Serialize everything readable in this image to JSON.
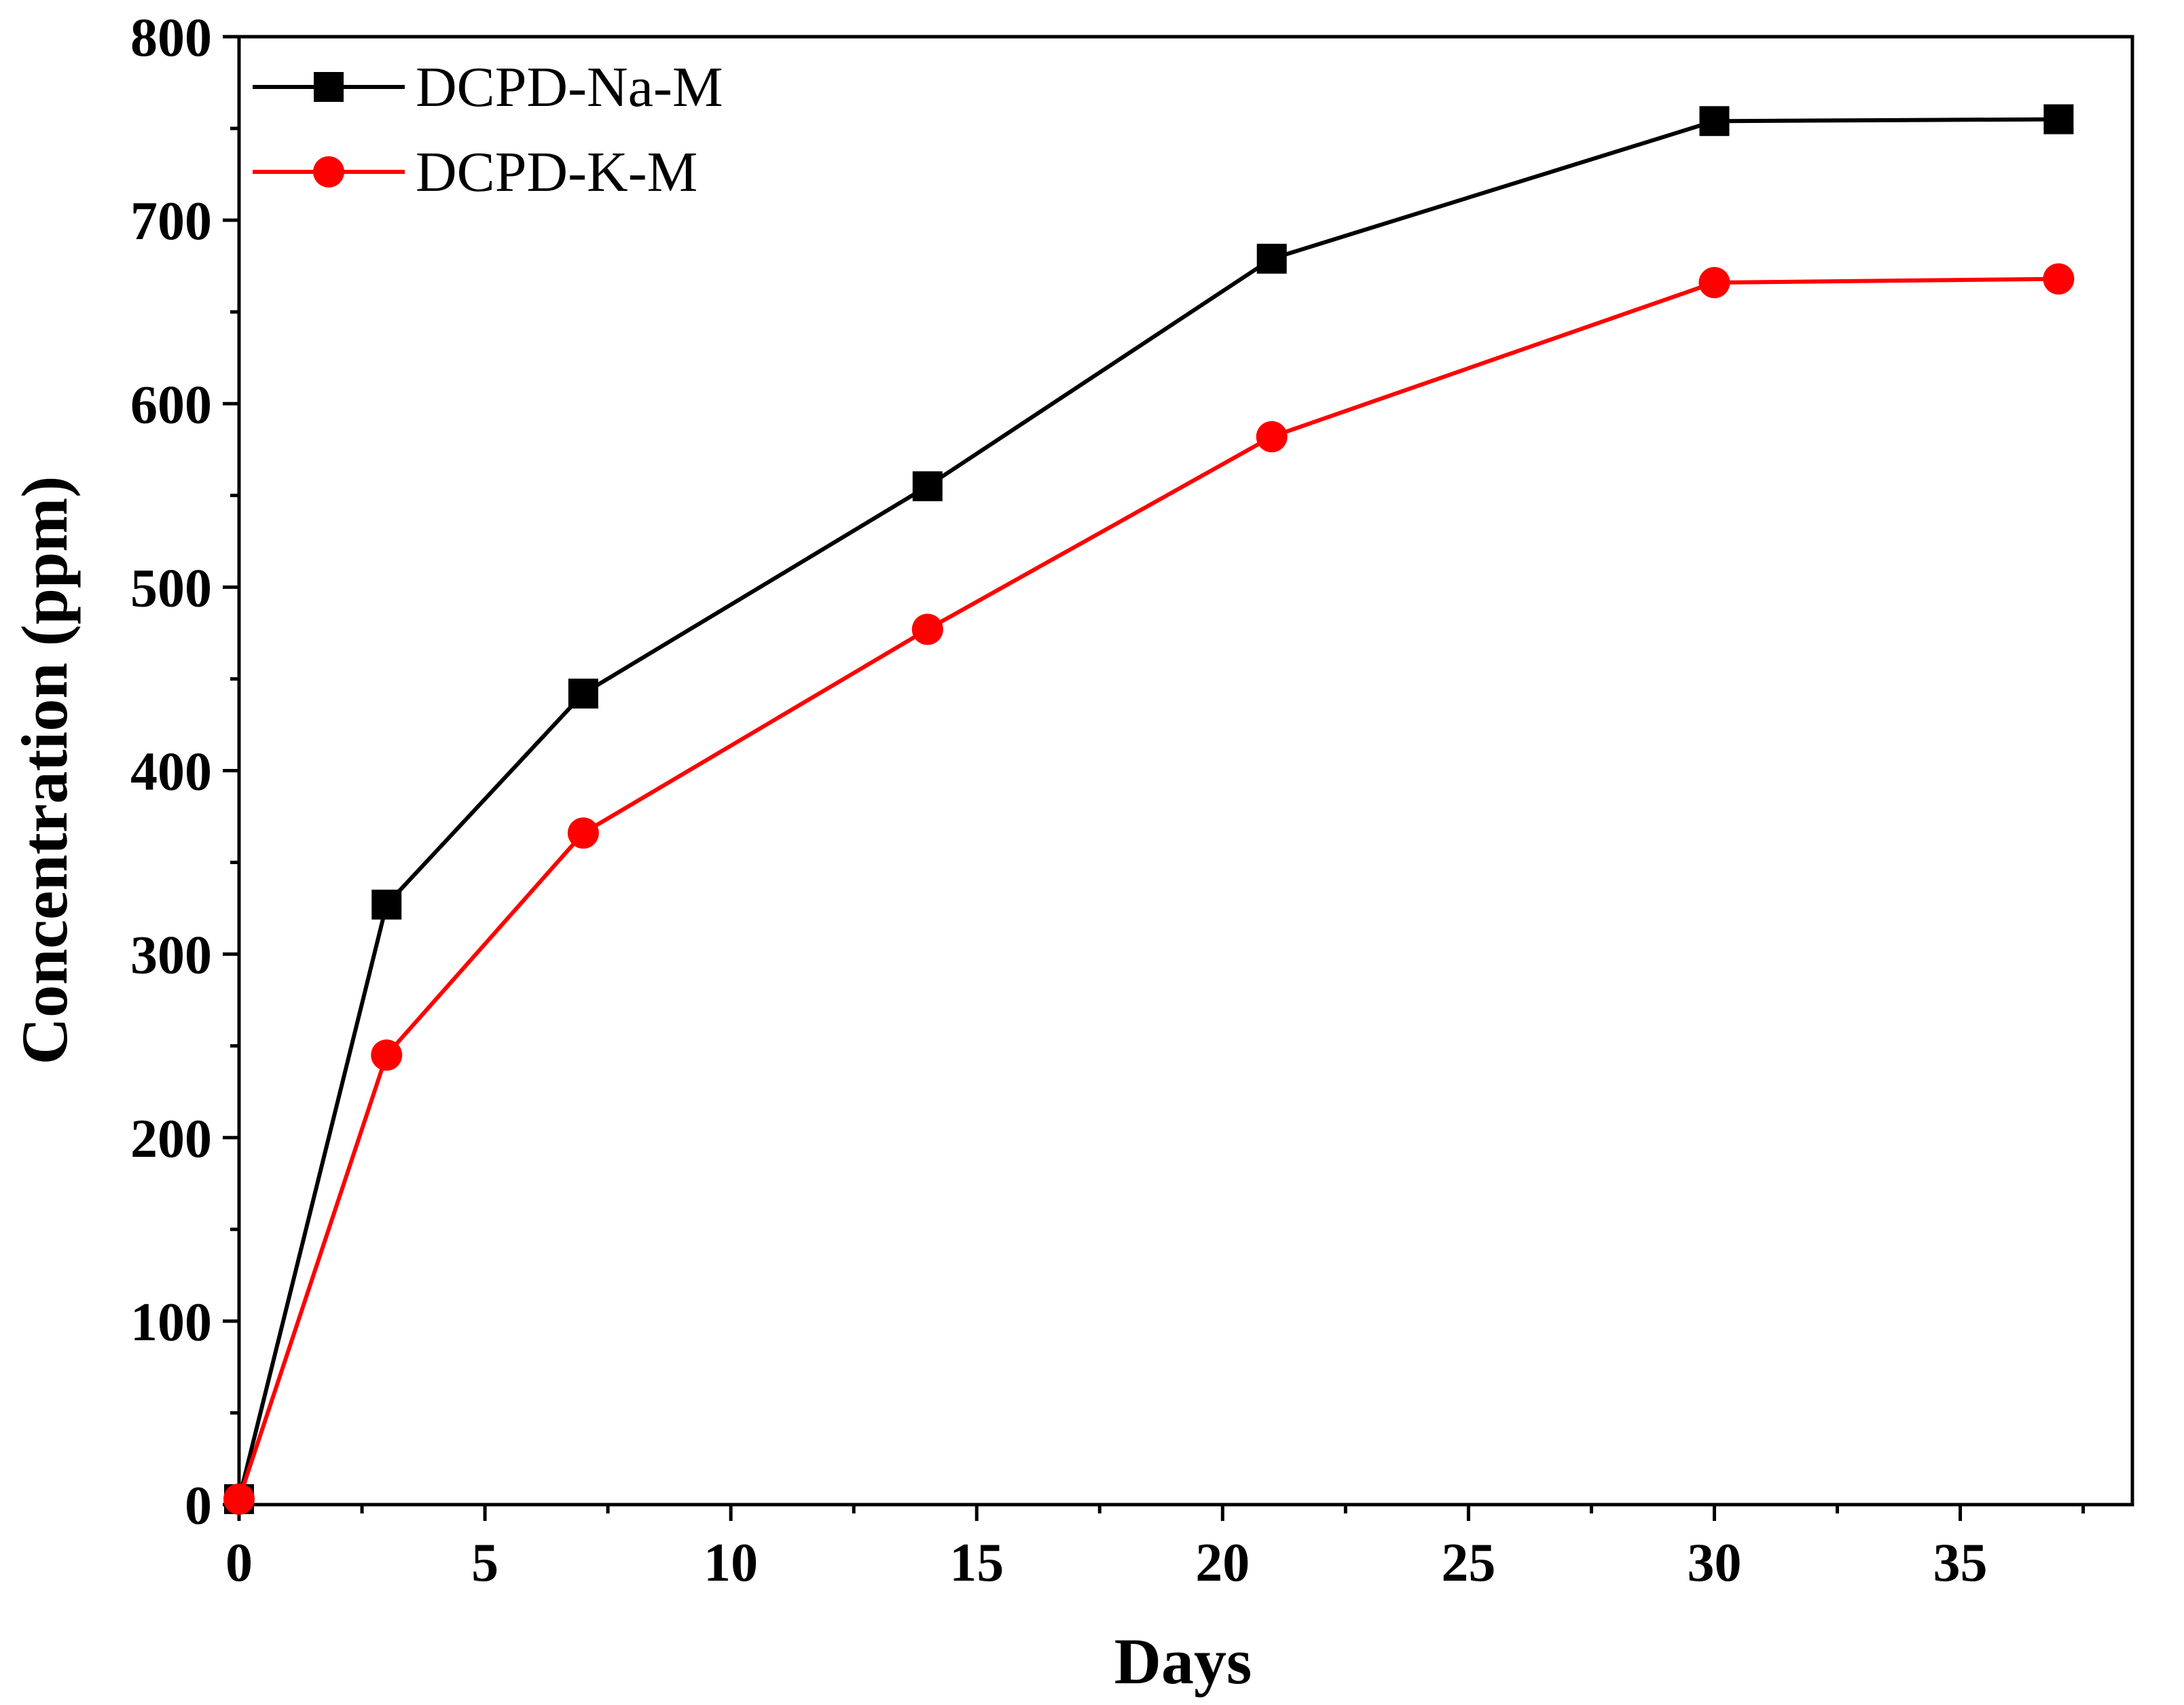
{
  "chart_data": {
    "type": "line",
    "title": "",
    "xlabel": "Days",
    "ylabel": "Concentration (ppm)",
    "xlim": [
      0,
      38.5
    ],
    "ylim": [
      0,
      800
    ],
    "xticks": [
      0,
      5,
      10,
      15,
      20,
      25,
      30,
      35
    ],
    "yticks": [
      0,
      100,
      200,
      300,
      400,
      500,
      600,
      700,
      800
    ],
    "x_tick_labels": [
      "0",
      "5",
      "10",
      "15",
      "20",
      "25",
      "30",
      "35"
    ],
    "y_tick_labels": [
      "0",
      "100",
      "200",
      "300",
      "400",
      "500",
      "600",
      "700",
      "800"
    ],
    "grid": false,
    "legend_position": "top-left",
    "series": [
      {
        "name": "DCPD-Na-M",
        "color": "#000000",
        "marker": "square",
        "x": [
          0,
          3,
          7,
          14,
          21,
          30,
          37
        ],
        "values": [
          3,
          327,
          442,
          555,
          679,
          754,
          755
        ]
      },
      {
        "name": "DCPD-K-M",
        "color": "#ff0000",
        "marker": "circle",
        "x": [
          0,
          3,
          7,
          14,
          21,
          30,
          37
        ],
        "values": [
          3,
          245,
          366,
          477,
          582,
          666,
          668
        ]
      }
    ]
  }
}
